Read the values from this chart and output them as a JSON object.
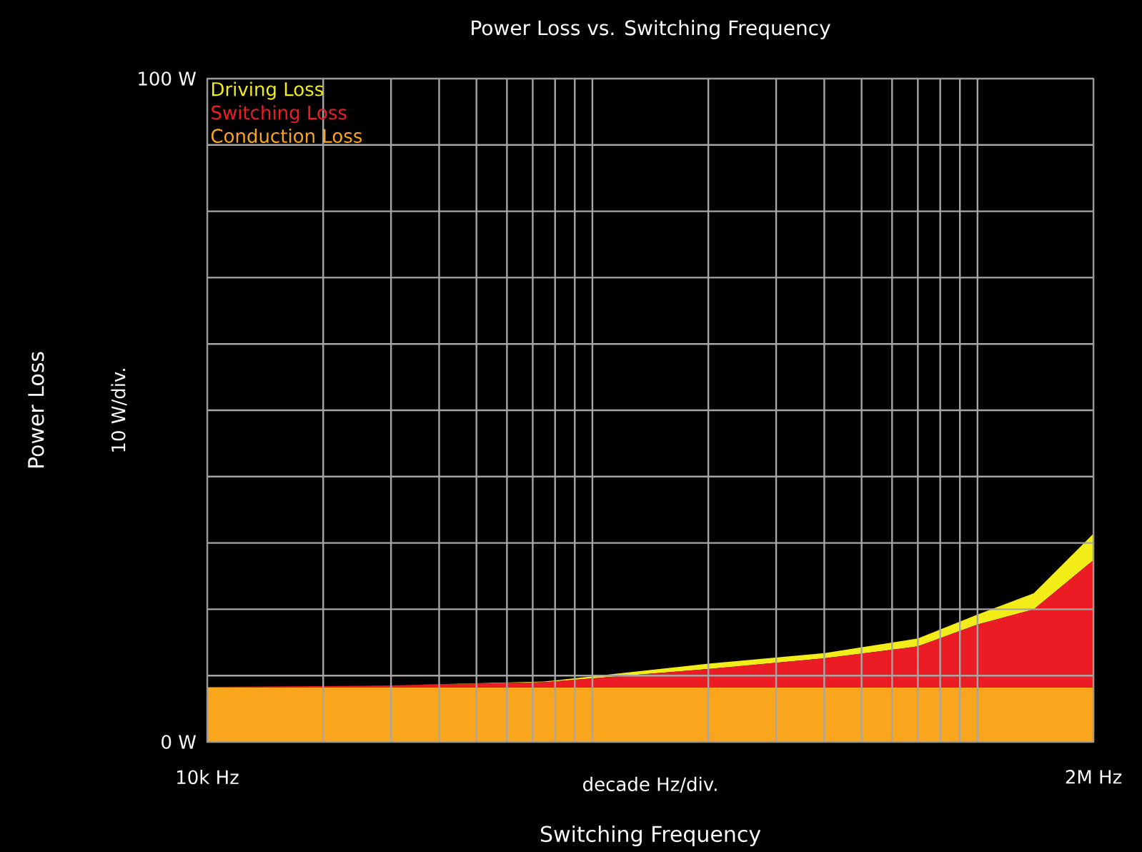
{
  "chart_data": {
    "type": "area",
    "title": "Power Loss vs. Switching Frequency",
    "xlabel": "Switching Frequency",
    "ylabel": "Power Loss",
    "annotations": [
      "decade Hz/div.",
      "10 W/div."
    ],
    "x": [
      10000,
      30000,
      75000,
      200000,
      400000,
      700000,
      1000000,
      1400000,
      2000000
    ],
    "stacked": true,
    "log": "x",
    "grid": true,
    "legend": "top left",
    "xlim": [
      10000,
      2000000
    ],
    "ylim": [
      0,
      100
    ],
    "xticks": [
      {
        "value": 10000,
        "label": "10k Hz"
      },
      {
        "value": 20000,
        "label": null
      },
      {
        "value": 30000,
        "label": null
      },
      {
        "value": 40000,
        "label": null
      },
      {
        "value": 50000,
        "label": null
      },
      {
        "value": 60000,
        "label": null
      },
      {
        "value": 70000,
        "label": null
      },
      {
        "value": 80000,
        "label": null
      },
      {
        "value": 90000,
        "label": null
      },
      {
        "value": 100000,
        "label": null
      },
      {
        "value": 200000,
        "label": null
      },
      {
        "value": 300000,
        "label": null
      },
      {
        "value": 400000,
        "label": null
      },
      {
        "value": 500000,
        "label": null
      },
      {
        "value": 600000,
        "label": null
      },
      {
        "value": 700000,
        "label": null
      },
      {
        "value": 800000,
        "label": null
      },
      {
        "value": 900000,
        "label": null
      },
      {
        "value": 1000000,
        "label": null
      },
      {
        "value": 2000000,
        "label": "2M Hz"
      }
    ],
    "yticks": [
      {
        "value": 0,
        "label": "0 W"
      },
      {
        "value": 10,
        "label": null
      },
      {
        "value": 20,
        "label": null
      },
      {
        "value": 30,
        "label": null
      },
      {
        "value": 40,
        "label": null
      },
      {
        "value": 50,
        "label": null
      },
      {
        "value": 60,
        "label": null
      },
      {
        "value": 70,
        "label": null
      },
      {
        "value": 80,
        "label": null
      },
      {
        "value": 90,
        "label": null
      },
      {
        "value": 100,
        "label": "100 W"
      }
    ],
    "series": [
      {
        "name": "Conduction Loss",
        "color": "#f9a61d",
        "values": [
          8.2,
          8.2,
          8.2,
          8.2,
          8.2,
          8.2,
          8.2,
          8.2,
          8.2
        ]
      },
      {
        "name": "Switching Loss",
        "color": "#ec1c24",
        "values": [
          0.1,
          0.3,
          0.8,
          2.8,
          4.4,
          6.2,
          9.5,
          11.8,
          19.2
        ]
      },
      {
        "name": "Driving Loss",
        "color": "#f2ec18",
        "values": [
          0.0,
          0.0,
          0.1,
          0.8,
          0.8,
          1.2,
          1.5,
          2.4,
          4.0
        ]
      }
    ]
  }
}
